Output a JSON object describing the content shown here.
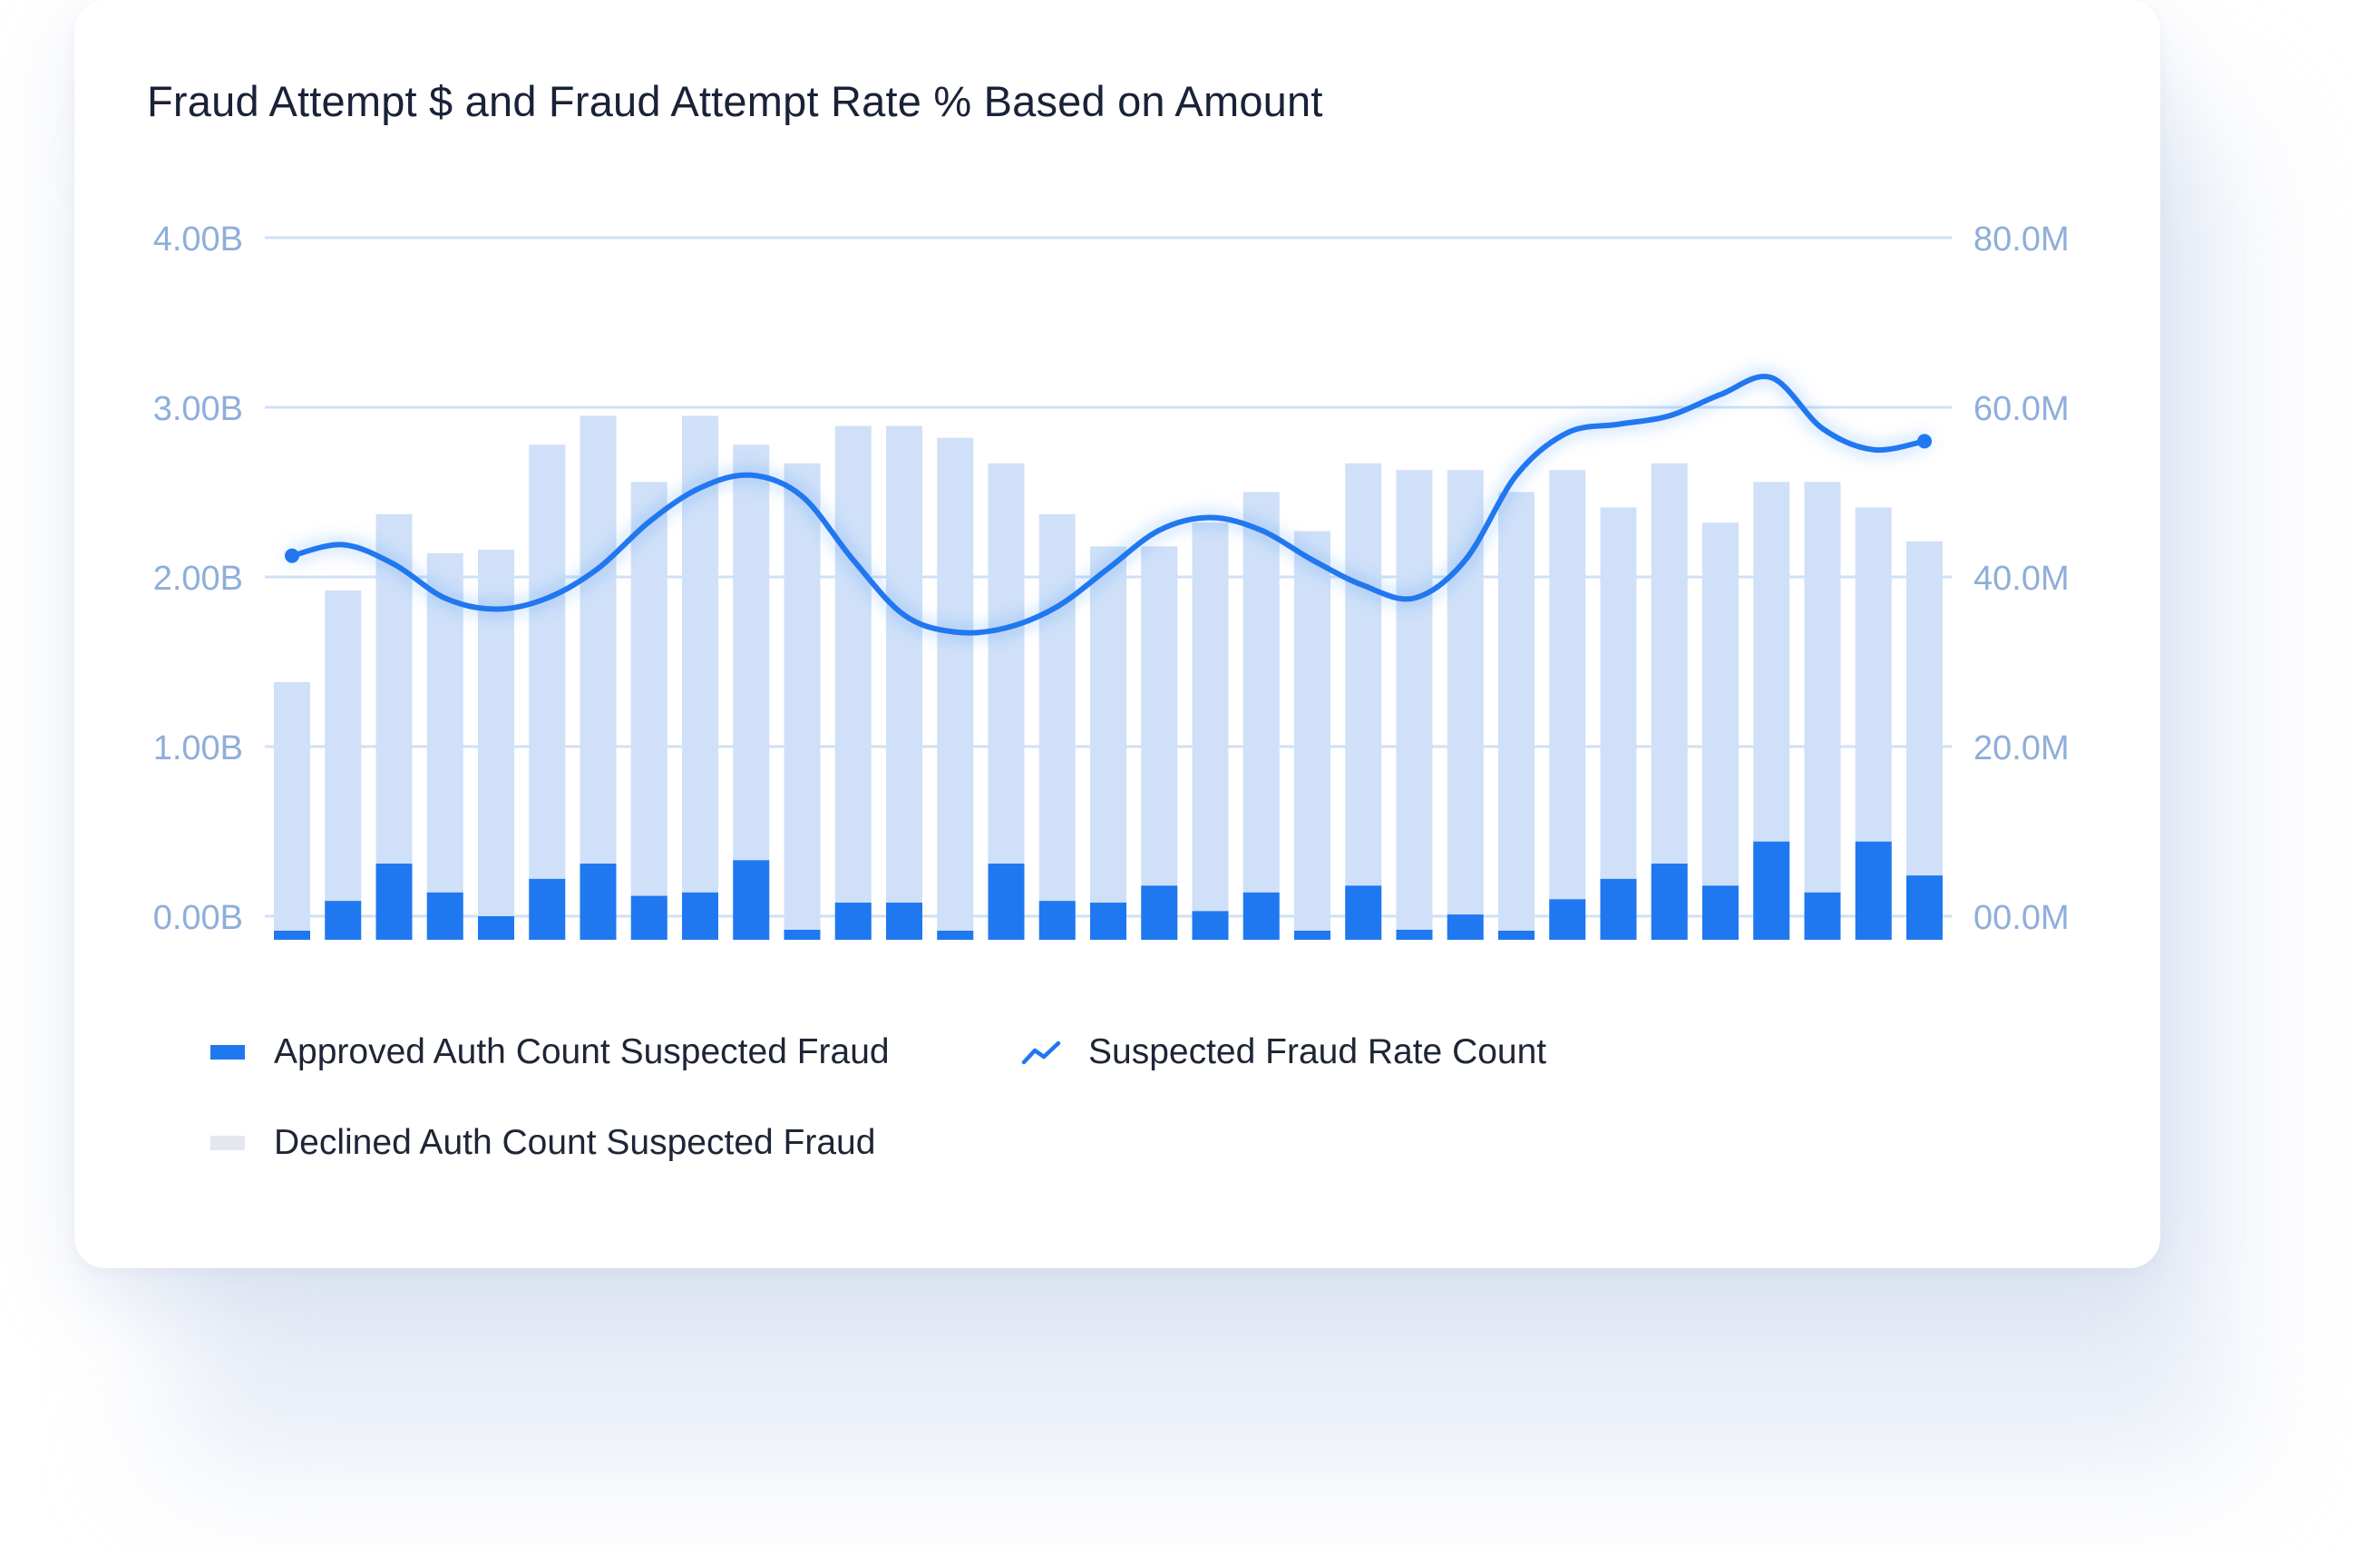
{
  "chart_data": {
    "type": "bar+line",
    "title": "Fraud Attempt $ and Fraud Attempt Rate % Based on Amount",
    "left_axis": {
      "ticks": [
        "4.00B",
        "3.00B",
        "2.00B",
        "1.00B",
        "0.00B"
      ],
      "range": [
        0,
        4.0
      ]
    },
    "right_axis": {
      "ticks": [
        "80.0M",
        "60.0M",
        "40.0M",
        "20.0M",
        "00.0M"
      ],
      "range": [
        0,
        80
      ]
    },
    "series": [
      {
        "name": "Approved Auth Count Suspected Fraud",
        "type": "bar",
        "axis": "left",
        "color": "#1f78f0",
        "values": [
          -0.14,
          0.09,
          0.31,
          0.14,
          0.0,
          0.22,
          0.31,
          0.12,
          0.14,
          0.33,
          -0.08,
          0.08,
          0.08,
          -0.1,
          0.31,
          0.09,
          0.08,
          0.18,
          0.03,
          0.14,
          -0.14,
          0.18,
          -0.08,
          0.01,
          -0.1,
          0.1,
          0.22,
          0.31,
          0.18,
          0.44,
          0.14,
          0.44,
          0.24
        ]
      },
      {
        "name": "Declined Auth Count Suspected Fraud",
        "type": "bar",
        "axis": "left",
        "color": "#cfe0f8",
        "values": [
          1.38,
          1.92,
          2.37,
          2.14,
          2.16,
          2.78,
          2.95,
          2.56,
          2.95,
          2.78,
          2.67,
          2.89,
          2.89,
          2.82,
          2.67,
          2.37,
          2.18,
          2.18,
          2.32,
          2.5,
          2.27,
          2.67,
          2.63,
          2.63,
          2.5,
          2.63,
          2.41,
          2.67,
          2.32,
          2.56,
          2.56,
          2.41,
          2.21
        ]
      },
      {
        "name": "Suspected Fraud Rate Count",
        "type": "line",
        "axis": "right",
        "color": "#1f78f0",
        "values": [
          42.5,
          43.8,
          41.5,
          37.5,
          36.2,
          37.5,
          41.0,
          46.5,
          50.5,
          52.0,
          49.5,
          42.0,
          35.5,
          33.5,
          34.0,
          36.5,
          41.0,
          45.5,
          47.0,
          45.5,
          42.0,
          39.0,
          37.5,
          42.0,
          52.0,
          57.0,
          58.0,
          59.0,
          61.5,
          63.5,
          57.5,
          55.0,
          56.0
        ]
      }
    ],
    "legend": [
      {
        "label": "Approved Auth Count Suspected Fraud",
        "kind": "bar",
        "color": "#1f78f0"
      },
      {
        "label": "Suspected Fraud Rate Count",
        "kind": "line",
        "color": "#1f78f0"
      },
      {
        "label": "Declined Auth Count Suspected Fraud",
        "kind": "bar",
        "color": "#e4e6f0"
      }
    ]
  }
}
